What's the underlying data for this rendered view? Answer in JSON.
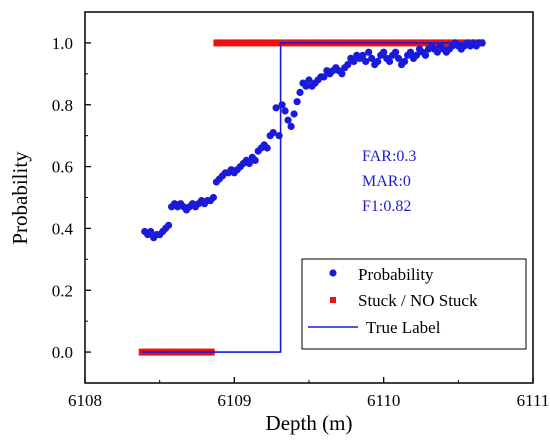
{
  "chart_data": {
    "type": "scatter",
    "xlabel": "Depth (m)",
    "ylabel": "Probability",
    "xlim": [
      6108,
      6111
    ],
    "ylim": [
      -0.1,
      1.1
    ],
    "xticks": [
      6108,
      6109,
      6110,
      6111
    ],
    "yticks": [
      0.0,
      0.2,
      0.4,
      0.6,
      0.8,
      1.0
    ],
    "xtick_labels": [
      "6108",
      "6109",
      "6110",
      "6111"
    ],
    "ytick_labels": [
      "0.0",
      "0.2",
      "0.4",
      "0.6",
      "0.8",
      "1.0"
    ],
    "legend_position": "bottom-right",
    "annotations": [
      "FAR:0.3",
      "MAR:0",
      "F1:0.82"
    ],
    "colors": {
      "probability": "#1a1adc",
      "stuck": "#ee1111",
      "true_label": "#1a1adc"
    },
    "series": [
      {
        "name": "Probability",
        "kind": "scatter",
        "points": [
          [
            6108.4,
            0.39
          ],
          [
            6108.42,
            0.38
          ],
          [
            6108.44,
            0.39
          ],
          [
            6108.46,
            0.37
          ],
          [
            6108.48,
            0.38
          ],
          [
            6108.5,
            0.38
          ],
          [
            6108.52,
            0.39
          ],
          [
            6108.54,
            0.4
          ],
          [
            6108.56,
            0.41
          ],
          [
            6108.58,
            0.47
          ],
          [
            6108.6,
            0.48
          ],
          [
            6108.62,
            0.47
          ],
          [
            6108.64,
            0.48
          ],
          [
            6108.66,
            0.47
          ],
          [
            6108.68,
            0.46
          ],
          [
            6108.7,
            0.47
          ],
          [
            6108.72,
            0.48
          ],
          [
            6108.74,
            0.47
          ],
          [
            6108.76,
            0.48
          ],
          [
            6108.78,
            0.49
          ],
          [
            6108.8,
            0.48
          ],
          [
            6108.82,
            0.49
          ],
          [
            6108.84,
            0.49
          ],
          [
            6108.86,
            0.5
          ],
          [
            6108.88,
            0.55
          ],
          [
            6108.9,
            0.56
          ],
          [
            6108.92,
            0.57
          ],
          [
            6108.94,
            0.58
          ],
          [
            6108.96,
            0.58
          ],
          [
            6108.98,
            0.59
          ],
          [
            6109.0,
            0.58
          ],
          [
            6109.02,
            0.59
          ],
          [
            6109.04,
            0.6
          ],
          [
            6109.06,
            0.61
          ],
          [
            6109.08,
            0.62
          ],
          [
            6109.1,
            0.61
          ],
          [
            6109.12,
            0.63
          ],
          [
            6109.14,
            0.62
          ],
          [
            6109.16,
            0.65
          ],
          [
            6109.18,
            0.66
          ],
          [
            6109.2,
            0.67
          ],
          [
            6109.22,
            0.66
          ],
          [
            6109.24,
            0.7
          ],
          [
            6109.26,
            0.71
          ],
          [
            6109.28,
            0.79
          ],
          [
            6109.3,
            0.7
          ],
          [
            6109.32,
            0.8
          ],
          [
            6109.34,
            0.78
          ],
          [
            6109.36,
            0.75
          ],
          [
            6109.38,
            0.73
          ],
          [
            6109.4,
            0.77
          ],
          [
            6109.42,
            0.81
          ],
          [
            6109.44,
            0.84
          ],
          [
            6109.46,
            0.87
          ],
          [
            6109.48,
            0.86
          ],
          [
            6109.5,
            0.88
          ],
          [
            6109.52,
            0.86
          ],
          [
            6109.54,
            0.87
          ],
          [
            6109.56,
            0.88
          ],
          [
            6109.58,
            0.89
          ],
          [
            6109.6,
            0.89
          ],
          [
            6109.62,
            0.91
          ],
          [
            6109.64,
            0.9
          ],
          [
            6109.66,
            0.91
          ],
          [
            6109.68,
            0.92
          ],
          [
            6109.7,
            0.91
          ],
          [
            6109.72,
            0.9
          ],
          [
            6109.74,
            0.92
          ],
          [
            6109.76,
            0.93
          ],
          [
            6109.78,
            0.95
          ],
          [
            6109.8,
            0.94
          ],
          [
            6109.82,
            0.96
          ],
          [
            6109.84,
            0.95
          ],
          [
            6109.86,
            0.96
          ],
          [
            6109.88,
            0.94
          ],
          [
            6109.9,
            0.97
          ],
          [
            6109.92,
            0.95
          ],
          [
            6109.94,
            0.93
          ],
          [
            6109.96,
            0.94
          ],
          [
            6109.98,
            0.96
          ],
          [
            6110.0,
            0.97
          ],
          [
            6110.02,
            0.95
          ],
          [
            6110.04,
            0.94
          ],
          [
            6110.06,
            0.96
          ],
          [
            6110.08,
            0.97
          ],
          [
            6110.1,
            0.95
          ],
          [
            6110.12,
            0.93
          ],
          [
            6110.14,
            0.94
          ],
          [
            6110.16,
            0.96
          ],
          [
            6110.18,
            0.97
          ],
          [
            6110.2,
            0.95
          ],
          [
            6110.22,
            0.96
          ],
          [
            6110.24,
            0.98
          ],
          [
            6110.26,
            0.97
          ],
          [
            6110.28,
            0.96
          ],
          [
            6110.3,
            0.98
          ],
          [
            6110.32,
            0.99
          ],
          [
            6110.34,
            0.98
          ],
          [
            6110.36,
            0.97
          ],
          [
            6110.38,
            0.99
          ],
          [
            6110.4,
            0.98
          ],
          [
            6110.42,
            0.97
          ],
          [
            6110.44,
            0.98
          ],
          [
            6110.46,
            0.99
          ],
          [
            6110.48,
            1.0
          ],
          [
            6110.5,
            0.99
          ],
          [
            6110.52,
            0.98
          ],
          [
            6110.54,
            0.99
          ],
          [
            6110.56,
            1.0
          ],
          [
            6110.58,
            0.99
          ],
          [
            6110.6,
            1.0
          ],
          [
            6110.62,
            0.99
          ],
          [
            6110.64,
            1.0
          ],
          [
            6110.66,
            1.0
          ]
        ]
      },
      {
        "name": "Stuck / NO Stuck",
        "kind": "square-markers",
        "segments": [
          {
            "x": [
              6108.38,
              6108.88
            ],
            "y": 0.0
          },
          {
            "x": [
              6108.88,
              6110.68
            ],
            "y": 1.0
          }
        ]
      },
      {
        "name": "True Label",
        "kind": "line",
        "points": [
          [
            6108.38,
            0.0
          ],
          [
            6109.31,
            0.0
          ],
          [
            6109.31,
            1.0
          ],
          [
            6109.35,
            1.0
          ],
          [
            6110.68,
            1.0
          ]
        ]
      }
    ]
  }
}
